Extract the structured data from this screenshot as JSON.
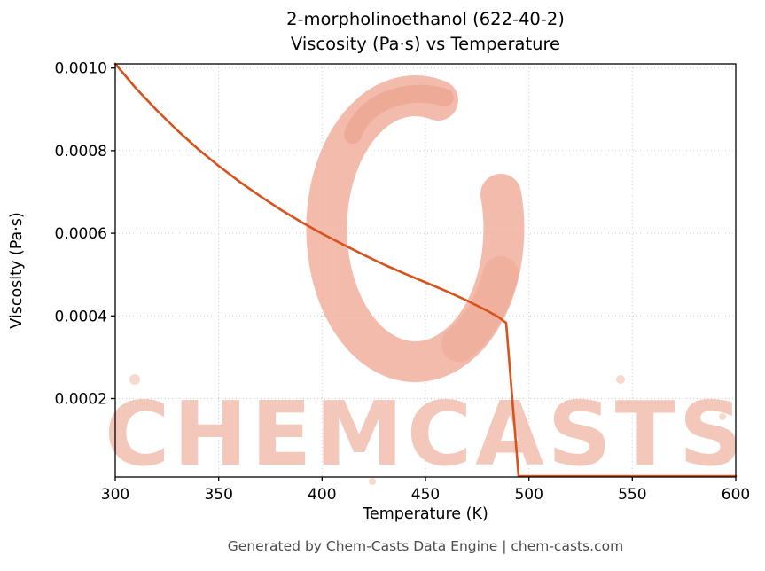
{
  "footer": {
    "text": "Generated by Chem-Casts Data Engine | chem-casts.com"
  },
  "chart_data": {
    "type": "line",
    "title": "2-morpholinoethanol (622-40-2)",
    "subtitle": "Viscosity (Pa·s) vs Temperature",
    "xlabel": "Temperature (K)",
    "ylabel": "Viscosity (Pa·s)",
    "xlim": [
      300,
      600
    ],
    "ylim": [
      1e-05,
      0.00101
    ],
    "xticks": [
      300,
      350,
      400,
      450,
      500,
      550,
      600
    ],
    "yticks": [
      0.0002,
      0.0004,
      0.0006,
      0.0008,
      0.001
    ],
    "grid": true,
    "grid_style": "dotted",
    "legend": "none",
    "line_color": "#d8521e",
    "watermark": {
      "text": "CHEMCASTS",
      "color": "#f2bfae",
      "logo_color": "#f0ab97",
      "logo_accent": "#e78e74"
    },
    "series": [
      {
        "name": "viscosity",
        "x": [
          300,
          310,
          320,
          330,
          340,
          350,
          360,
          370,
          380,
          390,
          400,
          410,
          420,
          430,
          440,
          450,
          460,
          470,
          480,
          485,
          489,
          495,
          500,
          520,
          540,
          560,
          580,
          600
        ],
        "y": [
          0.00101,
          0.000951,
          0.000898,
          0.000849,
          0.000804,
          0.000763,
          0.000725,
          0.00069,
          0.000657,
          0.000627,
          0.000599,
          0.000573,
          0.000548,
          0.000524,
          0.000502,
          0.000481,
          0.00046,
          0.000437,
          0.000412,
          0.000398,
          0.000383,
          1.2e-05,
          1.2e-05,
          1.2e-05,
          1.2e-05,
          1.2e-05,
          1.2e-05,
          1.2e-05
        ]
      }
    ]
  }
}
